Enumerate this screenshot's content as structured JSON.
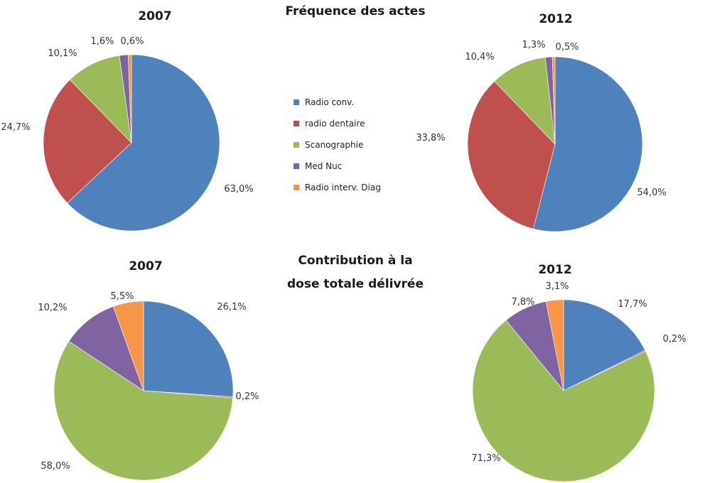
{
  "section_titles": {
    "frequency": "Fréquence des actes",
    "dose_line1": "Contribution à la",
    "dose_line2": "dose totale délivrée"
  },
  "legend": [
    {
      "label": "Radio conv.",
      "color": "#4f81bd"
    },
    {
      "label": "radio dentaire",
      "color": "#c0504d"
    },
    {
      "label": "Scanographie",
      "color": "#9bbb59"
    },
    {
      "label": "Med Nuc",
      "color": "#8064a2"
    },
    {
      "label": "Radio interv. Diag",
      "color": "#f79646"
    }
  ],
  "chart_data": [
    {
      "type": "pie",
      "title": "2007",
      "categories": [
        "Radio conv.",
        "radio dentaire",
        "Scanographie",
        "Med Nuc",
        "Radio interv. Diag"
      ],
      "values": [
        63.0,
        24.7,
        10.1,
        1.6,
        0.6
      ],
      "labels": [
        "63,0%",
        "24,7%",
        "10,1%",
        "1,6%",
        "0,6%"
      ]
    },
    {
      "type": "pie",
      "title": "2012",
      "categories": [
        "Radio conv.",
        "radio dentaire",
        "Scanographie",
        "Med Nuc",
        "Radio interv. Diag"
      ],
      "values": [
        54.0,
        33.8,
        10.4,
        1.3,
        0.5
      ],
      "labels": [
        "54,0%",
        "33,8%",
        "10,4%",
        "1,3%",
        "0,5%"
      ]
    },
    {
      "type": "pie",
      "title": "2007",
      "categories": [
        "Radio conv.",
        "radio dentaire",
        "Scanographie",
        "Med Nuc",
        "Radio interv. Diag"
      ],
      "values": [
        26.1,
        0.2,
        58.0,
        10.2,
        5.5
      ],
      "labels": [
        "26,1%",
        "0,2%",
        "58,0%",
        "10,2%",
        "5,5%"
      ]
    },
    {
      "type": "pie",
      "title": "2012",
      "categories": [
        "Radio conv.",
        "radio dentaire",
        "Scanographie",
        "Med Nuc",
        "Radio interv. Diag"
      ],
      "values": [
        17.7,
        0.2,
        71.3,
        7.8,
        3.1
      ],
      "labels": [
        "17,7%",
        "0,2%",
        "71,3%",
        "7,8%",
        "3,1%"
      ]
    }
  ]
}
